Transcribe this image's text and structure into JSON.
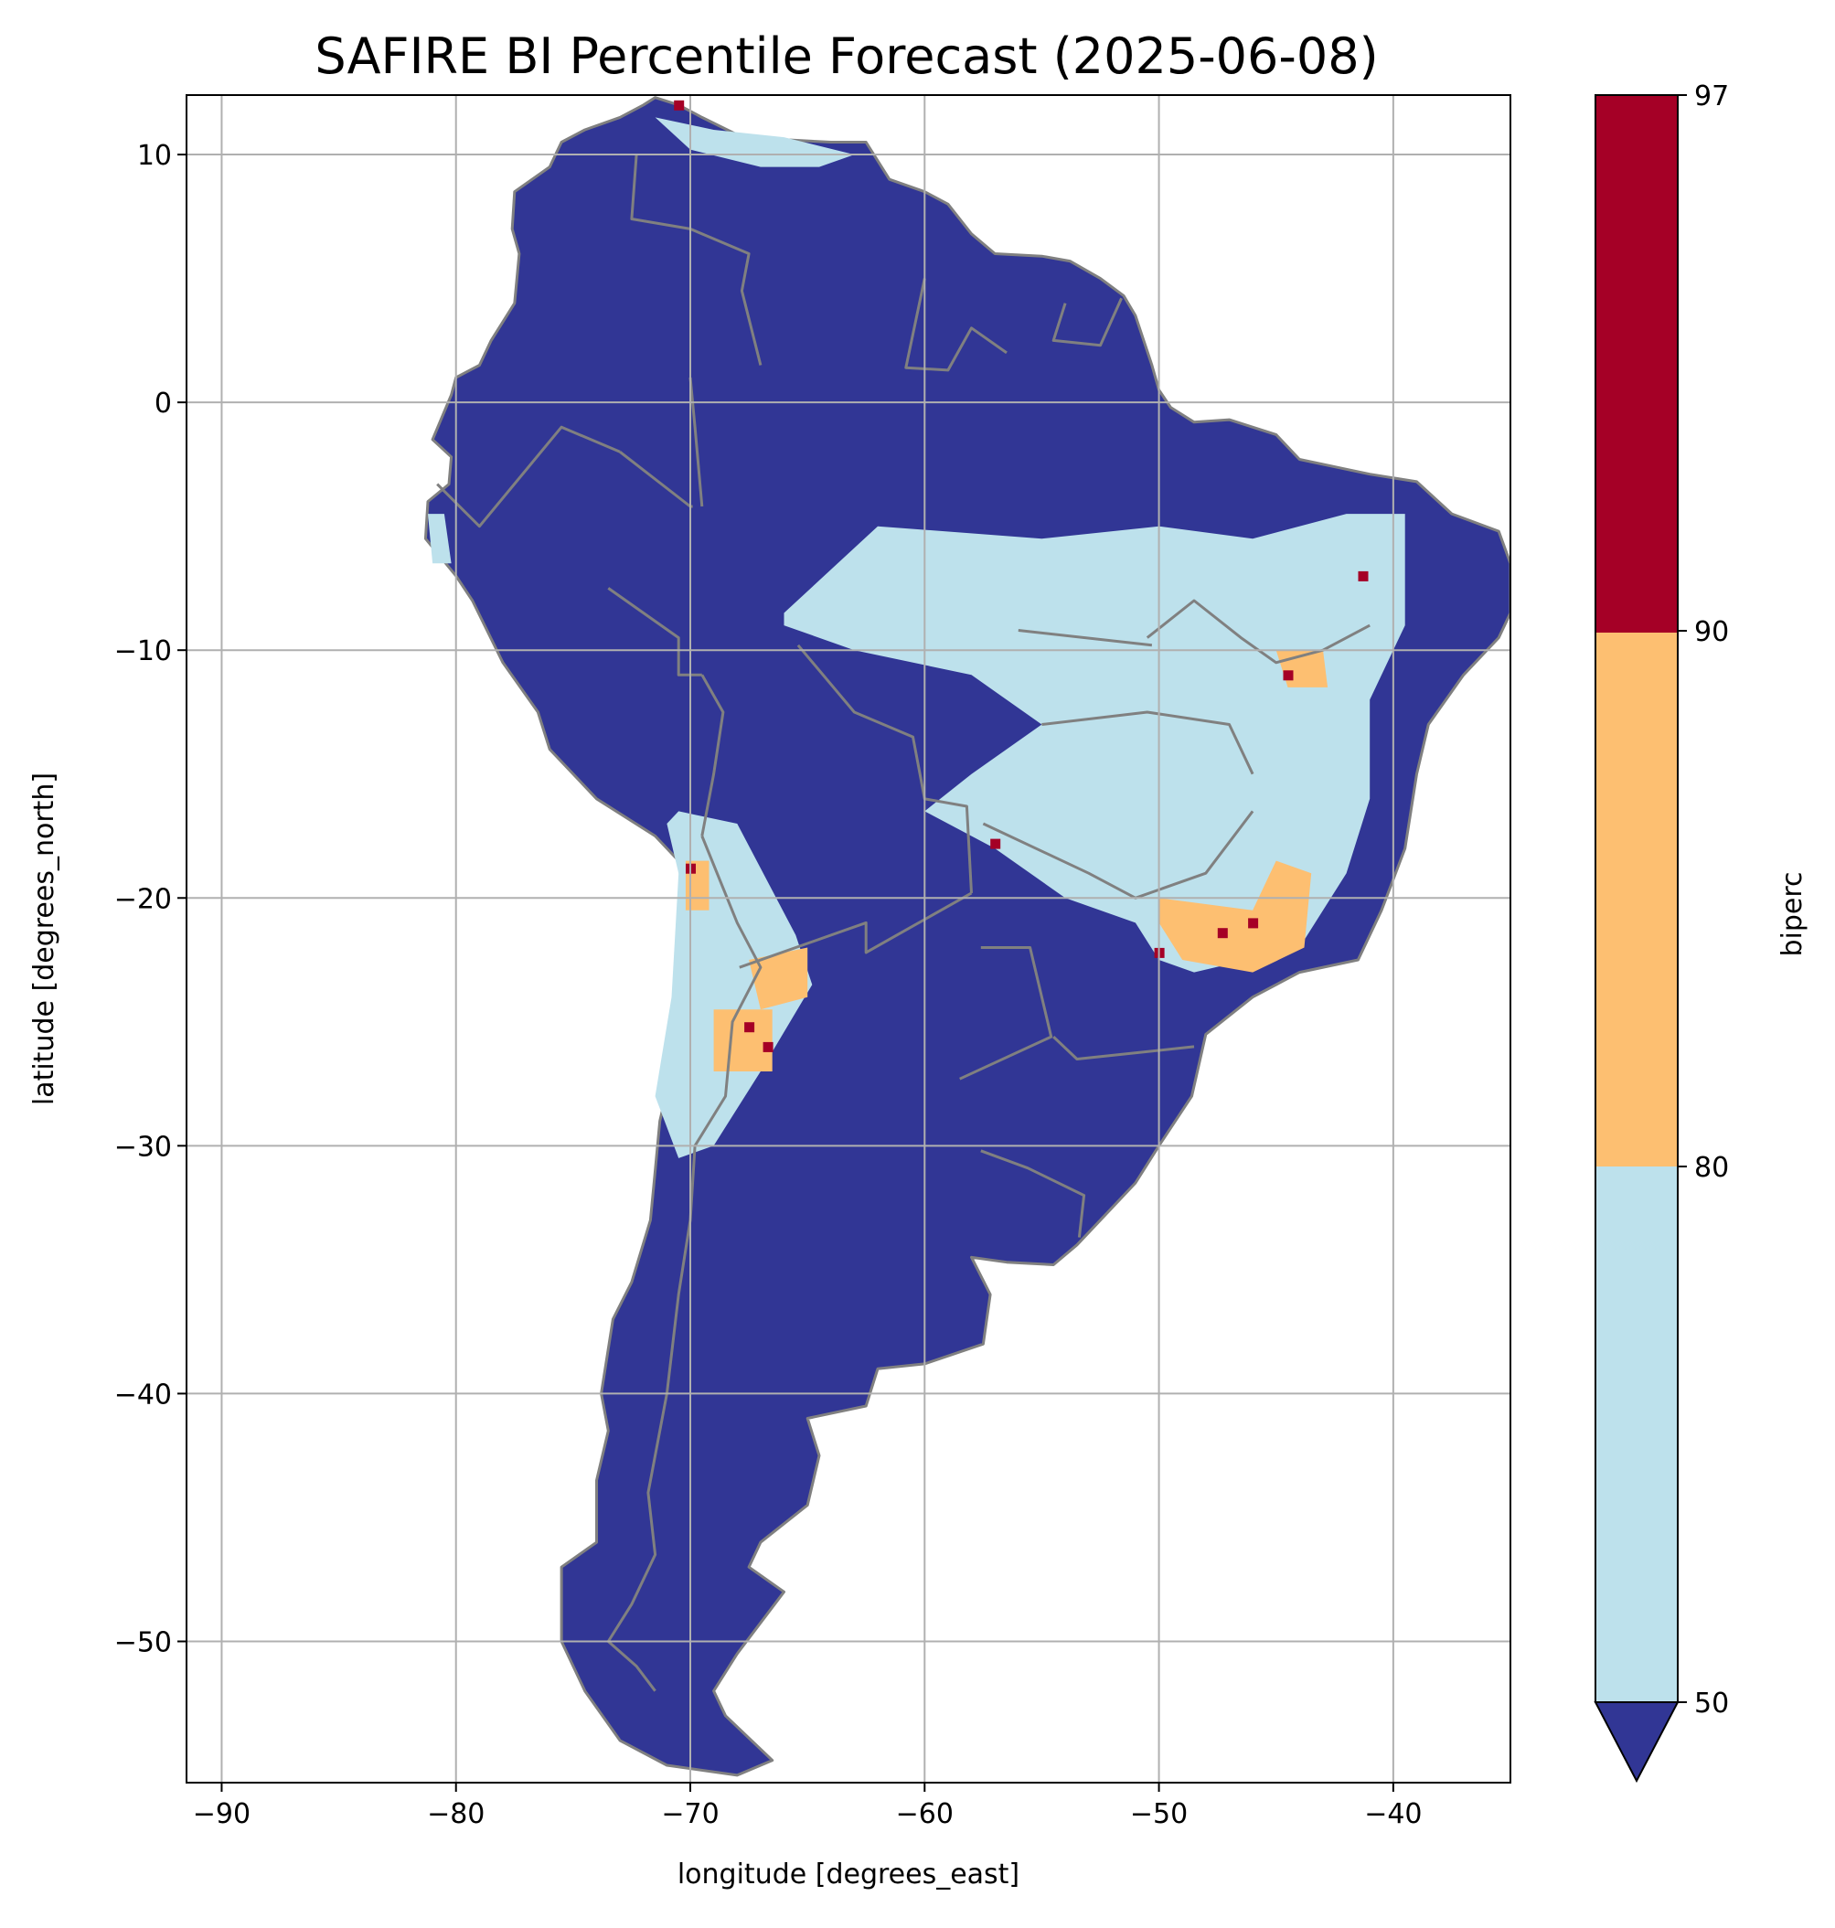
{
  "title": "SAFIRE BI Percentile Forecast (2025-06-08)",
  "xlabel": "longitude [degrees_east]",
  "ylabel": "latitude [degrees_north]",
  "colorbar_label": "biperc",
  "x_ticks": [
    "−90",
    "−80",
    "−70",
    "−60",
    "−50",
    "−40"
  ],
  "y_ticks": [
    "10",
    "0",
    "−10",
    "−20",
    "−30",
    "−40",
    "−50"
  ],
  "colorbar_ticks": [
    "50",
    "80",
    "90",
    "97"
  ],
  "colors": {
    "below_50": "#313695",
    "p50_80": "#bde1ec",
    "p80_90": "#fdbf71",
    "p90_97": "#a50026",
    "coastline": "#808080",
    "grid": "#b0b0b0"
  },
  "chart_data": {
    "type": "heatmap",
    "title": "SAFIRE BI Percentile Forecast (2025-06-08)",
    "xlabel": "longitude [degrees_east]",
    "ylabel": "latitude [degrees_north]",
    "xlim": [
      -91.5,
      -35
    ],
    "ylim": [
      -55.7,
      12.4
    ],
    "x_ticks": [
      -90,
      -80,
      -70,
      -60,
      -50,
      -40
    ],
    "y_ticks": [
      10,
      0,
      -10,
      -20,
      -30,
      -40,
      -50
    ],
    "grid": true,
    "colorbar": {
      "label": "biperc",
      "boundaries": [
        50,
        80,
        90,
        97
      ],
      "extend": "min",
      "categories": [
        {
          "range": "<50",
          "color": "#313695"
        },
        {
          "range": "50-80",
          "color": "#bde1ec"
        },
        {
          "range": "80-90",
          "color": "#fdbf71"
        },
        {
          "range": "90-97",
          "color": "#a50026"
        }
      ]
    },
    "regions": [
      {
        "name": "central-brazil",
        "class": "50-80",
        "outline_lonlat": [
          [
            -66,
            -8.5
          ],
          [
            -62,
            -5
          ],
          [
            -55,
            -5.5
          ],
          [
            -50,
            -5
          ],
          [
            -46,
            -5.5
          ],
          [
            -42,
            -4.5
          ],
          [
            -39.5,
            -4.5
          ],
          [
            -39.5,
            -9
          ],
          [
            -41,
            -12
          ],
          [
            -41,
            -16
          ],
          [
            -42,
            -19
          ],
          [
            -44,
            -22
          ],
          [
            -48.5,
            -23
          ],
          [
            -50,
            -22.5
          ],
          [
            -51,
            -21
          ],
          [
            -54,
            -20
          ],
          [
            -57,
            -18
          ],
          [
            -60,
            -16.5
          ],
          [
            -58,
            -15
          ],
          [
            -55,
            -13
          ],
          [
            -58,
            -11
          ],
          [
            -63,
            -10
          ],
          [
            -66,
            -9
          ]
        ]
      },
      {
        "name": "se-brazil-hotspot",
        "class": "80-90",
        "outline_lonlat": [
          [
            -50,
            -20
          ],
          [
            -46,
            -20.5
          ],
          [
            -45,
            -18.5
          ],
          [
            -43.5,
            -19
          ],
          [
            -43.8,
            -22
          ],
          [
            -46,
            -23
          ],
          [
            -49,
            -22.5
          ],
          [
            -50,
            -21
          ]
        ]
      },
      {
        "name": "ne-brazil-patch",
        "class": "80-90",
        "outline_lonlat": [
          [
            -45,
            -10
          ],
          [
            -43,
            -10
          ],
          [
            -42.8,
            -11.5
          ],
          [
            -44.5,
            -11.5
          ]
        ]
      },
      {
        "name": "andes-altiplano",
        "class": "50-80",
        "outline_lonlat": [
          [
            -70.5,
            -16.5
          ],
          [
            -68,
            -17
          ],
          [
            -65.5,
            -21.5
          ],
          [
            -64.8,
            -23.5
          ],
          [
            -67,
            -27
          ],
          [
            -69,
            -30
          ],
          [
            -70.5,
            -30.5
          ],
          [
            -71.5,
            -28
          ],
          [
            -70.8,
            -24
          ],
          [
            -70.5,
            -19
          ],
          [
            -71,
            -17
          ]
        ]
      },
      {
        "name": "andes-hot-1",
        "class": "80-90",
        "outline_lonlat": [
          [
            -67.5,
            -22.5
          ],
          [
            -65,
            -22
          ],
          [
            -65,
            -24
          ],
          [
            -67,
            -24.5
          ]
        ]
      },
      {
        "name": "andes-hot-2",
        "class": "80-90",
        "outline_lonlat": [
          [
            -69,
            -24.5
          ],
          [
            -66.5,
            -24.5
          ],
          [
            -66.5,
            -27
          ],
          [
            -69,
            -27
          ]
        ]
      },
      {
        "name": "andes-hot-3",
        "class": "80-90",
        "outline_lonlat": [
          [
            -70.2,
            -18.5
          ],
          [
            -69.2,
            -18.5
          ],
          [
            -69.2,
            -20.5
          ],
          [
            -70.2,
            -20.5
          ]
        ]
      },
      {
        "name": "venezuela-coast",
        "class": "50-80",
        "outline_lonlat": [
          [
            -71.5,
            11.5
          ],
          [
            -69,
            11
          ],
          [
            -66,
            10.7
          ],
          [
            -63,
            10
          ],
          [
            -64.5,
            9.5
          ],
          [
            -67,
            9.5
          ],
          [
            -70,
            10.2
          ]
        ]
      },
      {
        "name": "peru-coast",
        "class": "50-80",
        "outline_lonlat": [
          [
            -81.2,
            -4.5
          ],
          [
            -80.5,
            -4.5
          ],
          [
            -80.2,
            -6.5
          ],
          [
            -81,
            -6.5
          ]
        ]
      }
    ],
    "hot_spots_90_97": [
      {
        "lon": -44.5,
        "lat": -11.0
      },
      {
        "lon": -46.0,
        "lat": -21.0
      },
      {
        "lon": -47.3,
        "lat": -21.4
      },
      {
        "lon": -50.0,
        "lat": -22.2
      },
      {
        "lon": -70.0,
        "lat": -18.8
      },
      {
        "lon": -67.5,
        "lat": -25.2
      },
      {
        "lon": -66.7,
        "lat": -26.0
      },
      {
        "lon": -70.5,
        "lat": 12.0
      },
      {
        "lon": -57.0,
        "lat": -17.8
      },
      {
        "lon": -41.3,
        "lat": -7.0
      }
    ]
  }
}
